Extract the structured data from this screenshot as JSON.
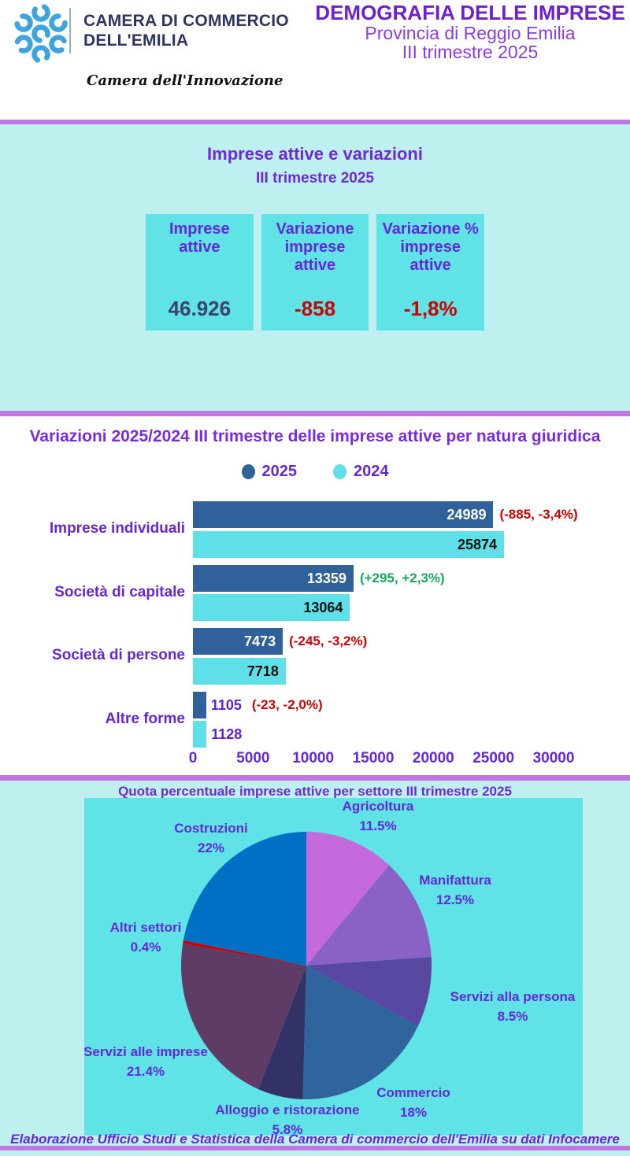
{
  "header": {
    "org_name_line1": "CAMERA DI COMMERCIO",
    "org_name_line2": "DELL'EMILIA",
    "org_tagline": "Camera dell'Innovazione",
    "title": "DEMOGRAFIA DELLE IMPRESE",
    "subtitle1": "Provincia di Reggio Emilia",
    "subtitle2": "III trimestre 2025",
    "logo_color": "#3ea4de"
  },
  "summary_box": {
    "title": "Imprese attive e variazioni",
    "subtitle": "III trimestre 2025",
    "cards": [
      {
        "label": "Imprese attive",
        "value": "46.926",
        "value_color": "#3b4168"
      },
      {
        "label": "Variazione imprese attive",
        "value": "-858",
        "value_color": "#cc0000"
      },
      {
        "label": "Variazione % imprese attive",
        "value": "-1,8%",
        "value_color": "#cc0000"
      }
    ]
  },
  "bar_section": {
    "title": "Variazioni 2025/2024 III trimestre delle imprese attive per natura giuridica"
  },
  "pie_section": {
    "title": "Quota percentuale imprese attive per settore III trimestre 2025"
  },
  "footer": {
    "text": "Elaborazione Ufficio Studi e Statistica della Camera di commercio dell'Emilia su dati Infocamere"
  },
  "colors": {
    "accent_purple_bar": "#c276e2",
    "panel_light_cyan": "#bff0f0",
    "panel_turquoise": "#5fe3e6",
    "text_purple": "#6428d8",
    "negative_red": "#cc0000",
    "positive_green": "#18a85a"
  },
  "chart_data": [
    {
      "type": "bar",
      "orientation": "horizontal",
      "title": "Variazioni 2025/2024 III trimestre delle imprese attive per natura giuridica",
      "categories": [
        "Imprese individuali",
        "Società di capitale",
        "Società di persone",
        "Altre forme"
      ],
      "series": [
        {
          "name": "2025",
          "color": "#31619b",
          "values": [
            24989,
            13359,
            7473,
            1105
          ]
        },
        {
          "name": "2024",
          "color": "#5fe0e8",
          "values": [
            25874,
            13064,
            7718,
            1128
          ]
        }
      ],
      "annotations": [
        {
          "text": "(-885, -3,4%)",
          "color": "#cc0000"
        },
        {
          "text": "(+295, +2,3%)",
          "color": "#18a85a"
        },
        {
          "text": "(-245, -3,2%)",
          "color": "#cc0000"
        },
        {
          "text": "(-23, -2,0%)",
          "color": "#cc0000"
        }
      ],
      "xlim": [
        0,
        30000
      ],
      "xticks": [
        0,
        5000,
        10000,
        15000,
        20000,
        25000,
        30000
      ],
      "legend_position": "top",
      "grid": false
    },
    {
      "type": "pie",
      "title": "Quota percentuale imprese attive per settore III trimestre 2025",
      "start_angle_deg": 0,
      "direction": "clockwise",
      "slices": [
        {
          "name": "Agricoltura",
          "pct": 11.5,
          "pct_label": "11.5%",
          "color": "#c56add"
        },
        {
          "name": "Manifattura",
          "pct": 12.5,
          "pct_label": "12.5%",
          "color": "#8a61c4"
        },
        {
          "name": "Servizi alla persona",
          "pct": 8.5,
          "pct_label": "8.5%",
          "color": "#5848a2"
        },
        {
          "name": "Commercio",
          "pct": 18,
          "pct_label": "18%",
          "color": "#30649c"
        },
        {
          "name": "Alloggio e ristorazione",
          "pct": 5.8,
          "pct_label": "5.8%",
          "color": "#333266"
        },
        {
          "name": "Servizi alle imprese",
          "pct": 21.4,
          "pct_label": "21.4%",
          "color": "#5e3c66"
        },
        {
          "name": "Altri settori",
          "pct": 0.4,
          "pct_label": "0.4%",
          "color": "#cc0000"
        },
        {
          "name": "Costruzioni",
          "pct": 22,
          "pct_label": "22%",
          "color": "#0070c4"
        }
      ]
    }
  ]
}
